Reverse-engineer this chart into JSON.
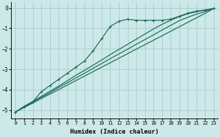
{
  "xlabel": "Humidex (Indice chaleur)",
  "ylabel": "",
  "bg_color": "#cce8e8",
  "grid_color": "#aacaca",
  "line_color": "#1a6b5a",
  "xlim": [
    -0.5,
    23.5
  ],
  "ylim": [
    -5.4,
    0.3
  ],
  "xticks": [
    0,
    1,
    2,
    3,
    4,
    5,
    6,
    7,
    8,
    9,
    10,
    11,
    12,
    13,
    14,
    15,
    16,
    17,
    18,
    19,
    20,
    21,
    22,
    23
  ],
  "yticks": [
    0,
    -1,
    -2,
    -3,
    -4,
    -5
  ],
  "lines": [
    {
      "x": [
        0,
        1,
        2,
        3,
        4,
        5,
        6,
        7,
        8,
        9,
        10,
        11,
        12,
        13,
        14,
        15,
        16,
        17,
        18,
        19,
        20,
        21,
        22,
        23
      ],
      "y": [
        -5.1,
        -4.85,
        -4.6,
        -4.1,
        -3.8,
        -3.5,
        -3.2,
        -2.9,
        -2.6,
        -2.1,
        -1.5,
        -0.9,
        -0.65,
        -0.55,
        -0.6,
        -0.6,
        -0.6,
        -0.6,
        -0.55,
        -0.4,
        -0.25,
        -0.15,
        -0.1,
        -0.02
      ],
      "marker": "+"
    },
    {
      "x": [
        0,
        1,
        2,
        3,
        4,
        5,
        6,
        7,
        8,
        9,
        10,
        11,
        12,
        13,
        14,
        15,
        16,
        17,
        18,
        19,
        20,
        21,
        22,
        23
      ],
      "y": [
        -5.1,
        -4.88,
        -4.66,
        -4.44,
        -4.22,
        -4.0,
        -3.78,
        -3.56,
        -3.34,
        -3.12,
        -2.9,
        -2.68,
        -2.46,
        -2.24,
        -2.02,
        -1.8,
        -1.58,
        -1.36,
        -1.14,
        -0.92,
        -0.7,
        -0.48,
        -0.26,
        -0.02
      ],
      "marker": null
    },
    {
      "x": [
        0,
        1,
        2,
        3,
        4,
        5,
        6,
        7,
        8,
        9,
        10,
        11,
        12,
        13,
        14,
        15,
        16,
        17,
        18,
        19,
        20,
        21,
        22,
        23
      ],
      "y": [
        -5.1,
        -4.85,
        -4.62,
        -4.38,
        -4.15,
        -3.9,
        -3.67,
        -3.43,
        -3.2,
        -2.96,
        -2.72,
        -2.48,
        -2.25,
        -2.02,
        -1.78,
        -1.55,
        -1.32,
        -1.08,
        -0.85,
        -0.62,
        -0.45,
        -0.3,
        -0.17,
        -0.02
      ],
      "marker": null
    },
    {
      "x": [
        0,
        1,
        2,
        3,
        4,
        5,
        6,
        7,
        8,
        9,
        10,
        11,
        12,
        13,
        14,
        15,
        16,
        17,
        18,
        19,
        20,
        21,
        22,
        23
      ],
      "y": [
        -5.1,
        -4.82,
        -4.58,
        -4.33,
        -4.08,
        -3.83,
        -3.57,
        -3.3,
        -3.06,
        -2.8,
        -2.55,
        -2.28,
        -2.03,
        -1.78,
        -1.53,
        -1.28,
        -1.03,
        -0.8,
        -0.6,
        -0.42,
        -0.28,
        -0.18,
        -0.1,
        -0.02
      ],
      "marker": null
    }
  ]
}
